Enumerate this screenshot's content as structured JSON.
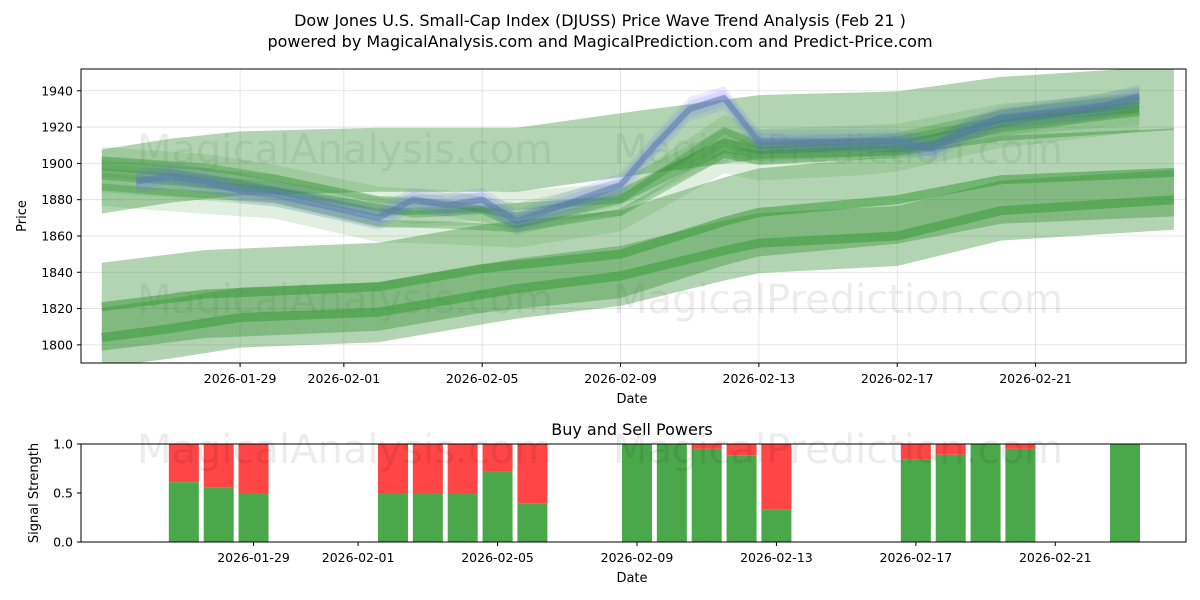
{
  "chart_data": [
    {
      "type": "line",
      "title": "Dow Jones U.S. Small-Cap Index (DJUSS) Price Wave Trend Analysis (Feb 21 )",
      "subtitle": "powered by MagicalAnalysis.com and MagicalPrediction.com and Predict-Price.com",
      "xlabel": "Date",
      "ylabel": "Price",
      "ylim": [
        1790,
        1952
      ],
      "xlim": [
        "2026-01-24",
        "2026-02-25"
      ],
      "grid": true,
      "x_ticks": [
        "2026-01-29",
        "2026-02-01",
        "2026-02-05",
        "2026-02-09",
        "2026-02-13",
        "2026-02-17",
        "2026-02-21"
      ],
      "y_ticks": [
        1800,
        1820,
        1840,
        1860,
        1880,
        1900,
        1920,
        1940
      ],
      "watermarks": [
        "MagicalAnalysis.com",
        "MagicalPrediction.com",
        "MagicalAnalysis.com",
        "MagicalPrediction.com"
      ],
      "series": [
        {
          "name": "price",
          "color": "#6666ff",
          "x": [
            "2026-01-26",
            "2026-01-27",
            "2026-01-28",
            "2026-01-29",
            "2026-01-30",
            "2026-02-02",
            "2026-02-03",
            "2026-02-04",
            "2026-02-05",
            "2026-02-06",
            "2026-02-09",
            "2026-02-10",
            "2026-02-11",
            "2026-02-12",
            "2026-02-13",
            "2026-02-16",
            "2026-02-17",
            "2026-02-18",
            "2026-02-19",
            "2026-02-20",
            "2026-02-23",
            "2026-02-24"
          ],
          "values": [
            1890,
            1893,
            1890,
            1885,
            1883,
            1870,
            1880,
            1877,
            1880,
            1868,
            1888,
            1910,
            1930,
            1936,
            1912,
            1912,
            1912,
            1908,
            1918,
            1925,
            1932,
            1937
          ]
        },
        {
          "name": "wave 1",
          "color": "#2e8b2e",
          "x": [
            "2026-01-25",
            "2026-01-27",
            "2026-01-29",
            "2026-01-30",
            "2026-02-02",
            "2026-02-03",
            "2026-02-05",
            "2026-02-06",
            "2026-02-09",
            "2026-02-12",
            "2026-02-13",
            "2026-02-16",
            "2026-02-17",
            "2026-02-18",
            "2026-02-20",
            "2026-02-24"
          ],
          "values": [
            1898,
            1895,
            1889,
            1885,
            1876,
            1872,
            1874,
            1866,
            1880,
            1908,
            1905,
            1908,
            1908,
            1910,
            1925,
            1932
          ]
        },
        {
          "name": "wave 2",
          "color": "#2e8b2e",
          "x": [
            "2026-01-25",
            "2026-01-28",
            "2026-01-30",
            "2026-02-02",
            "2026-02-04",
            "2026-02-06",
            "2026-02-09",
            "2026-02-12",
            "2026-02-13",
            "2026-02-17",
            "2026-02-20",
            "2026-02-24"
          ],
          "values": [
            1902,
            1898,
            1892,
            1880,
            1878,
            1871,
            1884,
            1912,
            1907,
            1910,
            1922,
            1935
          ]
        },
        {
          "name": "wave 3",
          "color": "#2e8b2e",
          "x": [
            "2026-01-25",
            "2026-01-27",
            "2026-01-30",
            "2026-02-02",
            "2026-02-05",
            "2026-02-09",
            "2026-02-12",
            "2026-02-13",
            "2026-02-17",
            "2026-02-20",
            "2026-02-24"
          ],
          "values": [
            1893,
            1890,
            1885,
            1873,
            1875,
            1880,
            1918,
            1910,
            1913,
            1924,
            1930
          ]
        },
        {
          "name": "wave 4",
          "color": "#2e8b2e",
          "x": [
            "2026-01-25",
            "2026-01-27",
            "2026-01-30",
            "2026-02-02",
            "2026-02-04",
            "2026-02-06",
            "2026-02-09",
            "2026-02-12",
            "2026-02-13",
            "2026-02-16",
            "2026-02-17",
            "2026-02-20",
            "2026-02-24"
          ],
          "values": [
            1887,
            1884,
            1880,
            1867,
            1866,
            1864,
            1873,
            1905,
            1901,
            1904,
            1906,
            1919,
            1928
          ]
        },
        {
          "name": "trend upper",
          "color": "#2e8b2e",
          "x": [
            "2026-01-25",
            "2026-01-27",
            "2026-01-29",
            "2026-02-02",
            "2026-02-06",
            "2026-02-09",
            "2026-02-13",
            "2026-02-17",
            "2026-02-20",
            "2026-02-25"
          ],
          "values": [
            1890,
            1896,
            1900,
            1902,
            1902,
            1910,
            1920,
            1922,
            1930,
            1936
          ]
        },
        {
          "name": "trend middle",
          "color": "#2e8b2e",
          "x": [
            "2026-01-25",
            "2026-01-28",
            "2026-02-02",
            "2026-02-05",
            "2026-02-09",
            "2026-02-12",
            "2026-02-13",
            "2026-02-17",
            "2026-02-20",
            "2026-02-25"
          ],
          "values": [
            1821,
            1828,
            1832,
            1842,
            1850,
            1868,
            1873,
            1880,
            1891,
            1895
          ]
        },
        {
          "name": "trend lower",
          "color": "#2e8b2e",
          "x": [
            "2026-01-25",
            "2026-01-27",
            "2026-01-29",
            "2026-02-02",
            "2026-02-06",
            "2026-02-09",
            "2026-02-12",
            "2026-02-13",
            "2026-02-17",
            "2026-02-20",
            "2026-02-25"
          ],
          "values": [
            1804,
            1809,
            1815,
            1818,
            1831,
            1838,
            1852,
            1856,
            1860,
            1874,
            1880
          ]
        }
      ]
    },
    {
      "type": "bar",
      "title": "Buy and Sell Powers",
      "xlabel": "Date",
      "ylabel": "Signal Strength",
      "ylim": [
        0,
        1
      ],
      "y_ticks": [
        0.0,
        0.5,
        1.0
      ],
      "y_tick_labels": [
        "0.0",
        "0.5",
        "1.0"
      ],
      "x_ticks": [
        "2026-01-29",
        "2026-02-01",
        "2026-02-05",
        "2026-02-09",
        "2026-02-13",
        "2026-02-17",
        "2026-02-21"
      ],
      "series": [
        {
          "name": "Buy",
          "color": "#4aa84a"
        },
        {
          "name": "Sell",
          "color": "#ff4545"
        }
      ],
      "bars": [
        {
          "date": "2026-01-27",
          "buy": 0.61
        },
        {
          "date": "2026-01-28",
          "buy": 0.56
        },
        {
          "date": "2026-01-29",
          "buy": 0.5
        },
        {
          "date": "2026-02-02",
          "buy": 0.5
        },
        {
          "date": "2026-02-03",
          "buy": 0.5
        },
        {
          "date": "2026-02-04",
          "buy": 0.5
        },
        {
          "date": "2026-02-05",
          "buy": 0.72
        },
        {
          "date": "2026-02-06",
          "buy": 0.39
        },
        {
          "date": "2026-02-09",
          "buy": 1.0
        },
        {
          "date": "2026-02-10",
          "buy": 1.0
        },
        {
          "date": "2026-02-11",
          "buy": 0.95
        },
        {
          "date": "2026-02-12",
          "buy": 0.88
        },
        {
          "date": "2026-02-13",
          "buy": 0.33
        },
        {
          "date": "2026-02-17",
          "buy": 0.84
        },
        {
          "date": "2026-02-18",
          "buy": 0.89
        },
        {
          "date": "2026-02-19",
          "buy": 1.0
        },
        {
          "date": "2026-02-20",
          "buy": 0.95
        },
        {
          "date": "2026-02-23",
          "buy": 1.0
        }
      ],
      "watermarks": [
        "MagicalAnalysis.com",
        "MagicalPrediction.com"
      ]
    }
  ]
}
